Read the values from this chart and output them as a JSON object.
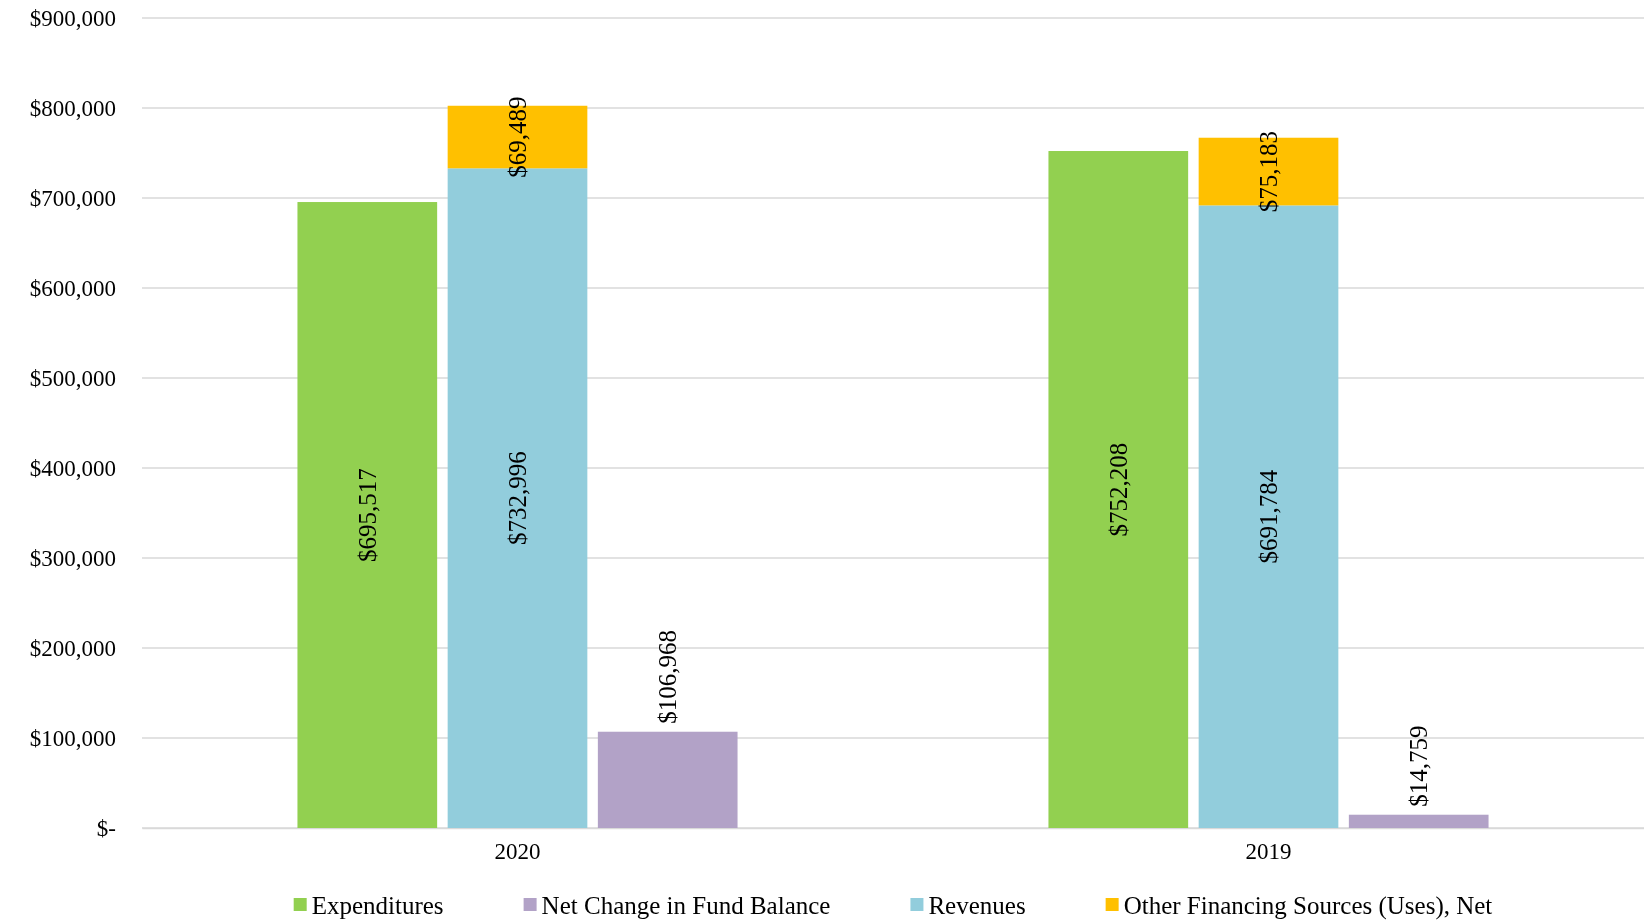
{
  "chart_data": {
    "type": "bar",
    "stacked": true,
    "categories": [
      null,
      null,
      "2020",
      null,
      null,
      null,
      null,
      "2019",
      null,
      null
    ],
    "series": [
      {
        "name": "Expenditures",
        "color": "#92d050",
        "values": [
          null,
          695517,
          null,
          null,
          null,
          null,
          752208,
          null,
          null,
          null
        ],
        "value_labels": [
          null,
          "$695,517",
          null,
          null,
          null,
          null,
          "$752,208",
          null,
          null,
          null
        ]
      },
      {
        "name": "Net Change in Fund Balance",
        "color": "#b2a2c7",
        "values": [
          null,
          null,
          null,
          106968,
          null,
          null,
          null,
          null,
          14759,
          null
        ],
        "value_labels": [
          null,
          null,
          null,
          "$106,968",
          null,
          null,
          null,
          null,
          "$14,759",
          null
        ]
      },
      {
        "name": "Revenues",
        "color": "#92cddc",
        "values": [
          null,
          null,
          732996,
          null,
          null,
          null,
          null,
          691784,
          null,
          null
        ],
        "value_labels": [
          null,
          null,
          "$732,996",
          null,
          null,
          null,
          null,
          "$691,784",
          null,
          null
        ]
      },
      {
        "name": "Other Financing Sources (Uses), Net",
        "color": "#ffc000",
        "values": [
          null,
          null,
          69489,
          null,
          null,
          null,
          null,
          75183,
          null,
          null
        ],
        "value_labels": [
          null,
          null,
          "$69,489",
          null,
          null,
          null,
          null,
          "$75,183",
          null,
          null
        ]
      }
    ],
    "ylim": [
      0,
      900000
    ],
    "yticks": [
      {
        "value": 0,
        "label": "$-"
      },
      {
        "value": 100000,
        "label": "$100,000"
      },
      {
        "value": 200000,
        "label": "$200,000"
      },
      {
        "value": 300000,
        "label": "$300,000"
      },
      {
        "value": 400000,
        "label": "$400,000"
      },
      {
        "value": 500000,
        "label": "$500,000"
      },
      {
        "value": 600000,
        "label": "$600,000"
      },
      {
        "value": 700000,
        "label": "$700,000"
      },
      {
        "value": 800000,
        "label": "$800,000"
      },
      {
        "value": 900000,
        "label": "$900,000"
      }
    ],
    "grid": "y",
    "legend": "bottom"
  }
}
